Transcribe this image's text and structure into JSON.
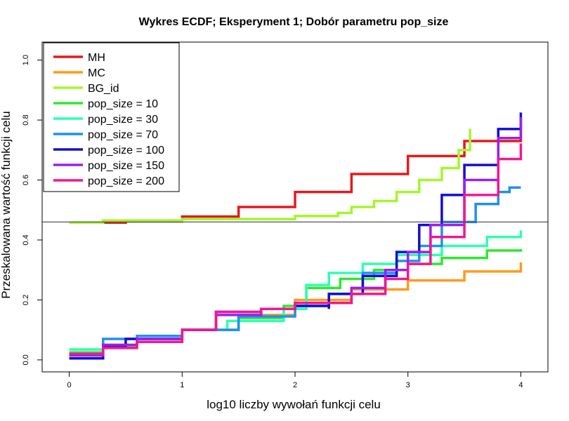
{
  "chart_data": {
    "type": "line",
    "title": "Wykres ECDF; Eksperyment 1; Dobór parametru pop_size",
    "xlabel": "log10 liczby wywołań funkcji celu",
    "ylabel": "Przeskalowana wartość funkcji celu",
    "xlim": [
      -0.24,
      4.24
    ],
    "ylim": [
      -0.04,
      1.06
    ],
    "xticks": [
      "0",
      "1",
      "2",
      "3",
      "4"
    ],
    "yticks": [
      "0.0",
      "0.2",
      "0.4",
      "0.6",
      "0.8",
      "1.0"
    ],
    "hline": 0.46,
    "grid": false,
    "legend_position": "top-left",
    "series": [
      {
        "name": "MH",
        "color": "#e41a1c",
        "points": [
          [
            0.0,
            0.458
          ],
          [
            0.5,
            0.462
          ],
          [
            1.0,
            0.478
          ],
          [
            1.5,
            0.51
          ],
          [
            2.0,
            0.56
          ],
          [
            2.5,
            0.62
          ],
          [
            3.0,
            0.68
          ],
          [
            3.5,
            0.73
          ],
          [
            4.0,
            0.766
          ]
        ]
      },
      {
        "name": "MC",
        "color": "#ff9a1a",
        "points": [
          [
            0.0,
            0.015
          ],
          [
            0.3,
            0.045
          ],
          [
            0.5,
            0.07
          ],
          [
            1.0,
            0.1
          ],
          [
            1.5,
            0.15
          ],
          [
            2.0,
            0.2
          ],
          [
            2.5,
            0.235
          ],
          [
            3.0,
            0.265
          ],
          [
            3.5,
            0.295
          ],
          [
            4.0,
            0.325
          ]
        ]
      },
      {
        "name": "BG_id",
        "color": "#a6f52a",
        "points": [
          [
            0.0,
            0.458
          ],
          [
            0.3,
            0.465
          ],
          [
            1.0,
            0.47
          ],
          [
            1.67,
            0.47
          ],
          [
            2.0,
            0.48
          ],
          [
            2.38,
            0.49
          ],
          [
            2.5,
            0.51
          ],
          [
            2.7,
            0.53
          ],
          [
            2.9,
            0.56
          ],
          [
            3.1,
            0.6
          ],
          [
            3.3,
            0.64
          ],
          [
            3.45,
            0.7
          ],
          [
            3.55,
            0.767
          ],
          [
            3.56,
            0.767
          ]
        ]
      },
      {
        "name": "pop_size = 10",
        "color": "#2ee82e",
        "points": [
          [
            0.0,
            0.025
          ],
          [
            0.3,
            0.045
          ],
          [
            0.6,
            0.07
          ],
          [
            1.0,
            0.1
          ],
          [
            1.5,
            0.14
          ],
          [
            1.9,
            0.18
          ],
          [
            2.1,
            0.24
          ],
          [
            2.4,
            0.27
          ],
          [
            2.7,
            0.3
          ],
          [
            3.0,
            0.32
          ],
          [
            3.3,
            0.34
          ],
          [
            3.7,
            0.365
          ],
          [
            4.0,
            0.37
          ]
        ]
      },
      {
        "name": "pop_size = 30",
        "color": "#2effb0",
        "points": [
          [
            0.0,
            0.035
          ],
          [
            0.3,
            0.05
          ],
          [
            0.6,
            0.07
          ],
          [
            1.0,
            0.1
          ],
          [
            1.4,
            0.13
          ],
          [
            1.9,
            0.17
          ],
          [
            2.1,
            0.25
          ],
          [
            2.3,
            0.29
          ],
          [
            2.6,
            0.32
          ],
          [
            2.9,
            0.35
          ],
          [
            3.3,
            0.38
          ],
          [
            3.7,
            0.41
          ],
          [
            4.0,
            0.432
          ]
        ]
      },
      {
        "name": "pop_size = 70",
        "color": "#2090f0",
        "points": [
          [
            0.0,
            0.02
          ],
          [
            0.3,
            0.07
          ],
          [
            0.6,
            0.08
          ],
          [
            1.0,
            0.1
          ],
          [
            1.5,
            0.145
          ],
          [
            2.0,
            0.18
          ],
          [
            2.3,
            0.22
          ],
          [
            2.6,
            0.29
          ],
          [
            2.9,
            0.33
          ],
          [
            3.1,
            0.38
          ],
          [
            3.3,
            0.46
          ],
          [
            3.6,
            0.52
          ],
          [
            3.8,
            0.56
          ],
          [
            3.9,
            0.575
          ],
          [
            4.0,
            0.575
          ]
        ]
      },
      {
        "name": "pop_size = 100",
        "color": "#1010d0",
        "points": [
          [
            0.0,
            0.005
          ],
          [
            0.3,
            0.045
          ],
          [
            0.5,
            0.07
          ],
          [
            1.0,
            0.1
          ],
          [
            1.3,
            0.16
          ],
          [
            1.7,
            0.17
          ],
          [
            2.0,
            0.18
          ],
          [
            2.3,
            0.17
          ],
          [
            2.3,
            0.22
          ],
          [
            2.6,
            0.28
          ],
          [
            2.9,
            0.36
          ],
          [
            3.1,
            0.45
          ],
          [
            3.3,
            0.55
          ],
          [
            3.5,
            0.65
          ],
          [
            3.8,
            0.77
          ],
          [
            4.0,
            0.825
          ]
        ]
      },
      {
        "name": "pop_size = 150",
        "color": "#9a20f0",
        "points": [
          [
            0.0,
            0.015
          ],
          [
            0.3,
            0.05
          ],
          [
            0.6,
            0.07
          ],
          [
            1.0,
            0.1
          ],
          [
            1.3,
            0.15
          ],
          [
            1.7,
            0.17
          ],
          [
            2.0,
            0.19
          ],
          [
            2.5,
            0.24
          ],
          [
            2.8,
            0.3
          ],
          [
            3.0,
            0.36
          ],
          [
            3.2,
            0.45
          ],
          [
            3.5,
            0.6
          ],
          [
            3.8,
            0.74
          ],
          [
            4.0,
            0.81
          ]
        ]
      },
      {
        "name": "pop_size = 200",
        "color": "#f01890",
        "points": [
          [
            0.0,
            0.02
          ],
          [
            0.3,
            0.04
          ],
          [
            0.6,
            0.06
          ],
          [
            1.0,
            0.1
          ],
          [
            1.3,
            0.16
          ],
          [
            1.7,
            0.17
          ],
          [
            2.0,
            0.19
          ],
          [
            2.5,
            0.22
          ],
          [
            2.8,
            0.27
          ],
          [
            3.0,
            0.32
          ],
          [
            3.2,
            0.41
          ],
          [
            3.5,
            0.55
          ],
          [
            3.8,
            0.67
          ],
          [
            4.0,
            0.722
          ]
        ]
      }
    ]
  }
}
